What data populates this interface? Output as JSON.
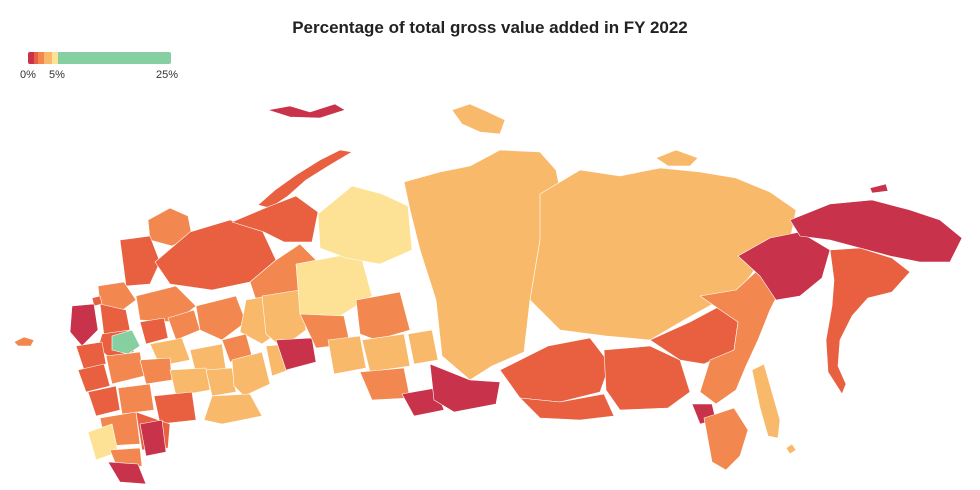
{
  "title": "Percentage of total gross value added in FY 2022",
  "legend": {
    "labels": [
      "0%",
      "5%",
      "25%"
    ],
    "colors": [
      "#c8324a",
      "#e8603f",
      "#f2884f",
      "#f9b96b",
      "#fde295",
      "#86cfa0"
    ]
  },
  "map": {
    "subject": "Russian regions by share of total gross value added, FY 2022",
    "colors": {
      "very_high": "#86cfa0",
      "high": "#fde295",
      "mid_high": "#f9b96b",
      "mid": "#f2884f",
      "mid_low": "#e8603f",
      "low": "#c8324a"
    }
  }
}
